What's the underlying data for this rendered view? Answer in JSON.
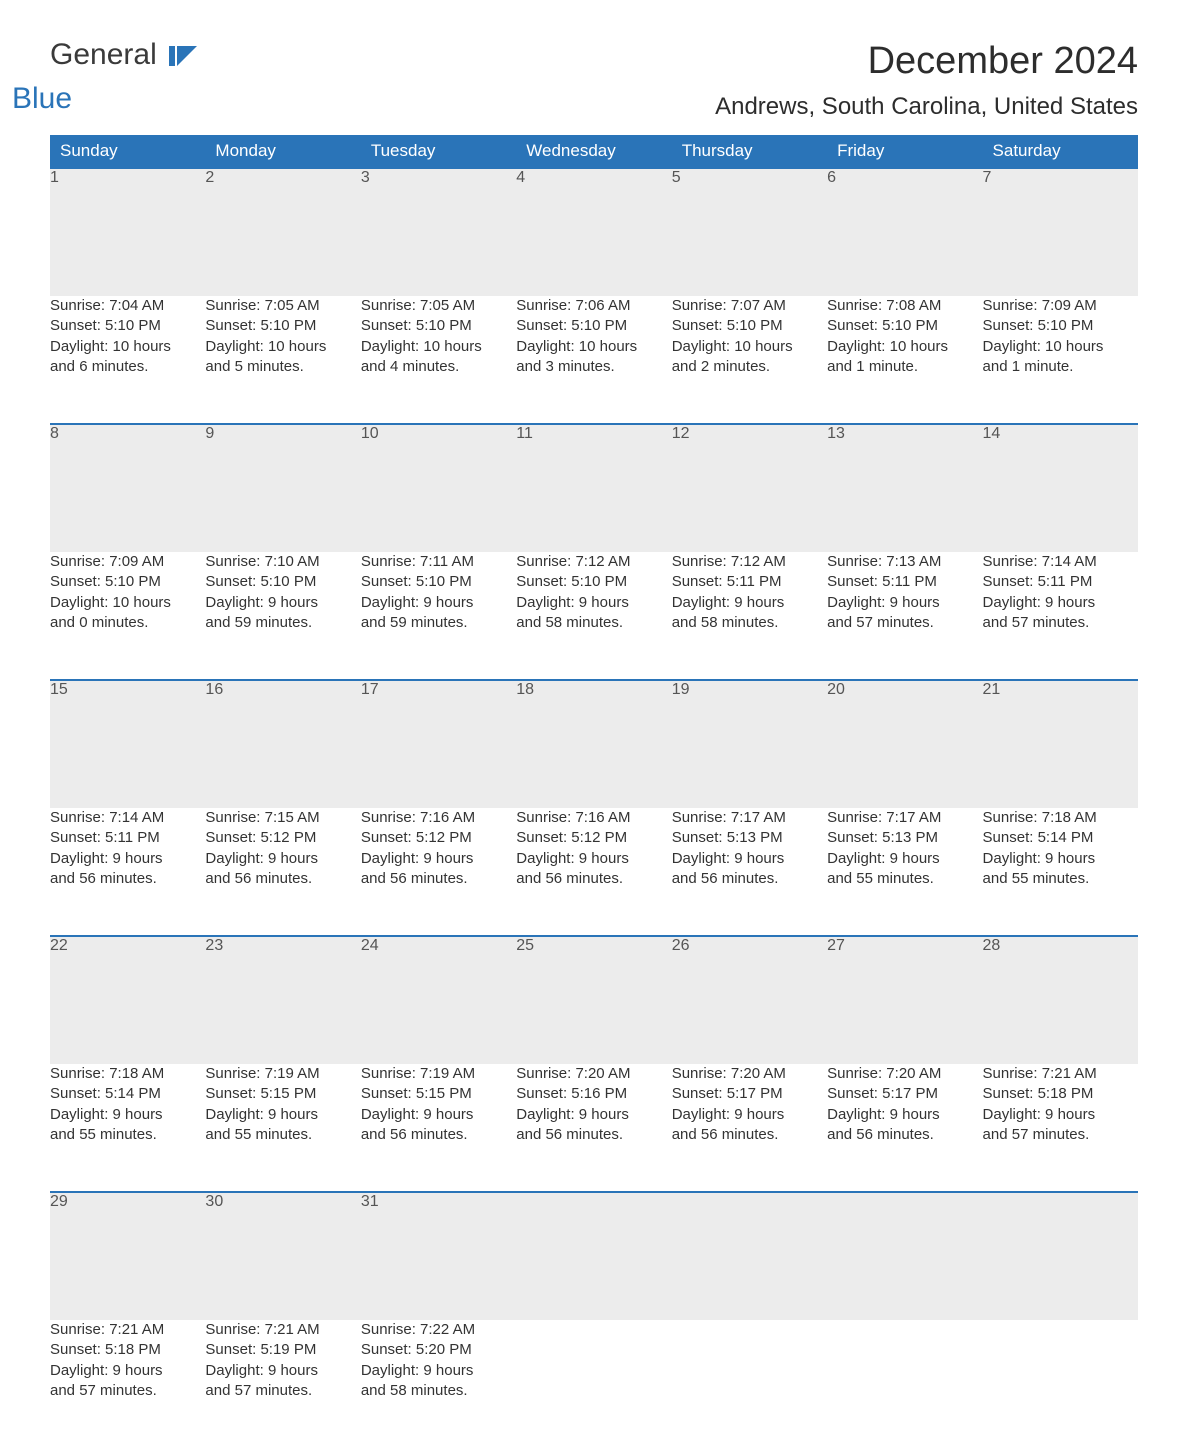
{
  "brand": {
    "word1": "General",
    "word2": "Blue",
    "accent_color": "#2a74b8"
  },
  "header": {
    "month_title": "December 2024",
    "location": "Andrews, South Carolina, United States"
  },
  "calendar": {
    "columns": [
      "Sunday",
      "Monday",
      "Tuesday",
      "Wednesday",
      "Thursday",
      "Friday",
      "Saturday"
    ],
    "header_bg": "#2a74b8",
    "header_fg": "#ffffff",
    "daynum_bg": "#ececec",
    "row_border_color": "#2a74b8",
    "text_color": "#333333",
    "weeks": [
      [
        {
          "day": "1",
          "sunrise": "Sunrise: 7:04 AM",
          "sunset": "Sunset: 5:10 PM",
          "daylight1": "Daylight: 10 hours",
          "daylight2": "and 6 minutes."
        },
        {
          "day": "2",
          "sunrise": "Sunrise: 7:05 AM",
          "sunset": "Sunset: 5:10 PM",
          "daylight1": "Daylight: 10 hours",
          "daylight2": "and 5 minutes."
        },
        {
          "day": "3",
          "sunrise": "Sunrise: 7:05 AM",
          "sunset": "Sunset: 5:10 PM",
          "daylight1": "Daylight: 10 hours",
          "daylight2": "and 4 minutes."
        },
        {
          "day": "4",
          "sunrise": "Sunrise: 7:06 AM",
          "sunset": "Sunset: 5:10 PM",
          "daylight1": "Daylight: 10 hours",
          "daylight2": "and 3 minutes."
        },
        {
          "day": "5",
          "sunrise": "Sunrise: 7:07 AM",
          "sunset": "Sunset: 5:10 PM",
          "daylight1": "Daylight: 10 hours",
          "daylight2": "and 2 minutes."
        },
        {
          "day": "6",
          "sunrise": "Sunrise: 7:08 AM",
          "sunset": "Sunset: 5:10 PM",
          "daylight1": "Daylight: 10 hours",
          "daylight2": "and 1 minute."
        },
        {
          "day": "7",
          "sunrise": "Sunrise: 7:09 AM",
          "sunset": "Sunset: 5:10 PM",
          "daylight1": "Daylight: 10 hours",
          "daylight2": "and 1 minute."
        }
      ],
      [
        {
          "day": "8",
          "sunrise": "Sunrise: 7:09 AM",
          "sunset": "Sunset: 5:10 PM",
          "daylight1": "Daylight: 10 hours",
          "daylight2": "and 0 minutes."
        },
        {
          "day": "9",
          "sunrise": "Sunrise: 7:10 AM",
          "sunset": "Sunset: 5:10 PM",
          "daylight1": "Daylight: 9 hours",
          "daylight2": "and 59 minutes."
        },
        {
          "day": "10",
          "sunrise": "Sunrise: 7:11 AM",
          "sunset": "Sunset: 5:10 PM",
          "daylight1": "Daylight: 9 hours",
          "daylight2": "and 59 minutes."
        },
        {
          "day": "11",
          "sunrise": "Sunrise: 7:12 AM",
          "sunset": "Sunset: 5:10 PM",
          "daylight1": "Daylight: 9 hours",
          "daylight2": "and 58 minutes."
        },
        {
          "day": "12",
          "sunrise": "Sunrise: 7:12 AM",
          "sunset": "Sunset: 5:11 PM",
          "daylight1": "Daylight: 9 hours",
          "daylight2": "and 58 minutes."
        },
        {
          "day": "13",
          "sunrise": "Sunrise: 7:13 AM",
          "sunset": "Sunset: 5:11 PM",
          "daylight1": "Daylight: 9 hours",
          "daylight2": "and 57 minutes."
        },
        {
          "day": "14",
          "sunrise": "Sunrise: 7:14 AM",
          "sunset": "Sunset: 5:11 PM",
          "daylight1": "Daylight: 9 hours",
          "daylight2": "and 57 minutes."
        }
      ],
      [
        {
          "day": "15",
          "sunrise": "Sunrise: 7:14 AM",
          "sunset": "Sunset: 5:11 PM",
          "daylight1": "Daylight: 9 hours",
          "daylight2": "and 56 minutes."
        },
        {
          "day": "16",
          "sunrise": "Sunrise: 7:15 AM",
          "sunset": "Sunset: 5:12 PM",
          "daylight1": "Daylight: 9 hours",
          "daylight2": "and 56 minutes."
        },
        {
          "day": "17",
          "sunrise": "Sunrise: 7:16 AM",
          "sunset": "Sunset: 5:12 PM",
          "daylight1": "Daylight: 9 hours",
          "daylight2": "and 56 minutes."
        },
        {
          "day": "18",
          "sunrise": "Sunrise: 7:16 AM",
          "sunset": "Sunset: 5:12 PM",
          "daylight1": "Daylight: 9 hours",
          "daylight2": "and 56 minutes."
        },
        {
          "day": "19",
          "sunrise": "Sunrise: 7:17 AM",
          "sunset": "Sunset: 5:13 PM",
          "daylight1": "Daylight: 9 hours",
          "daylight2": "and 56 minutes."
        },
        {
          "day": "20",
          "sunrise": "Sunrise: 7:17 AM",
          "sunset": "Sunset: 5:13 PM",
          "daylight1": "Daylight: 9 hours",
          "daylight2": "and 55 minutes."
        },
        {
          "day": "21",
          "sunrise": "Sunrise: 7:18 AM",
          "sunset": "Sunset: 5:14 PM",
          "daylight1": "Daylight: 9 hours",
          "daylight2": "and 55 minutes."
        }
      ],
      [
        {
          "day": "22",
          "sunrise": "Sunrise: 7:18 AM",
          "sunset": "Sunset: 5:14 PM",
          "daylight1": "Daylight: 9 hours",
          "daylight2": "and 55 minutes."
        },
        {
          "day": "23",
          "sunrise": "Sunrise: 7:19 AM",
          "sunset": "Sunset: 5:15 PM",
          "daylight1": "Daylight: 9 hours",
          "daylight2": "and 55 minutes."
        },
        {
          "day": "24",
          "sunrise": "Sunrise: 7:19 AM",
          "sunset": "Sunset: 5:15 PM",
          "daylight1": "Daylight: 9 hours",
          "daylight2": "and 56 minutes."
        },
        {
          "day": "25",
          "sunrise": "Sunrise: 7:20 AM",
          "sunset": "Sunset: 5:16 PM",
          "daylight1": "Daylight: 9 hours",
          "daylight2": "and 56 minutes."
        },
        {
          "day": "26",
          "sunrise": "Sunrise: 7:20 AM",
          "sunset": "Sunset: 5:17 PM",
          "daylight1": "Daylight: 9 hours",
          "daylight2": "and 56 minutes."
        },
        {
          "day": "27",
          "sunrise": "Sunrise: 7:20 AM",
          "sunset": "Sunset: 5:17 PM",
          "daylight1": "Daylight: 9 hours",
          "daylight2": "and 56 minutes."
        },
        {
          "day": "28",
          "sunrise": "Sunrise: 7:21 AM",
          "sunset": "Sunset: 5:18 PM",
          "daylight1": "Daylight: 9 hours",
          "daylight2": "and 57 minutes."
        }
      ],
      [
        {
          "day": "29",
          "sunrise": "Sunrise: 7:21 AM",
          "sunset": "Sunset: 5:18 PM",
          "daylight1": "Daylight: 9 hours",
          "daylight2": "and 57 minutes."
        },
        {
          "day": "30",
          "sunrise": "Sunrise: 7:21 AM",
          "sunset": "Sunset: 5:19 PM",
          "daylight1": "Daylight: 9 hours",
          "daylight2": "and 57 minutes."
        },
        {
          "day": "31",
          "sunrise": "Sunrise: 7:22 AM",
          "sunset": "Sunset: 5:20 PM",
          "daylight1": "Daylight: 9 hours",
          "daylight2": "and 58 minutes."
        },
        null,
        null,
        null,
        null
      ]
    ]
  }
}
